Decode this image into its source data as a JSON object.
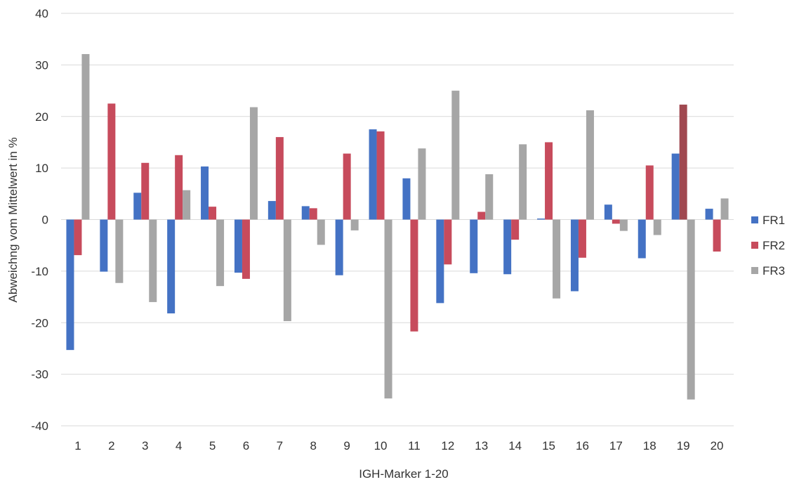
{
  "chart_data": {
    "type": "bar",
    "xlabel": "IGH-Marker 1-20",
    "ylabel": "Abweichng vom Mittelwert in %",
    "ylim": [
      -40,
      40
    ],
    "yticks": [
      -40,
      -30,
      -20,
      -10,
      0,
      10,
      20,
      30,
      40
    ],
    "grid": true,
    "legend_position": "right",
    "categories": [
      "1",
      "2",
      "3",
      "4",
      "5",
      "6",
      "7",
      "8",
      "9",
      "10",
      "11",
      "12",
      "13",
      "14",
      "15",
      "16",
      "17",
      "18",
      "19",
      "20"
    ],
    "series": [
      {
        "name": "FR1",
        "color": "#4472c4",
        "values": [
          -25.3,
          -10.1,
          5.2,
          -18.2,
          10.3,
          -10.3,
          3.6,
          2.6,
          -10.8,
          17.5,
          8.0,
          -16.2,
          -10.4,
          -10.6,
          0.2,
          -13.9,
          2.9,
          -7.5,
          12.8,
          2.1
        ]
      },
      {
        "name": "FR2",
        "color": "#c74b5c",
        "highlight_color": "#a04850",
        "highlight_index": 18,
        "values": [
          -6.9,
          22.5,
          11.0,
          12.5,
          2.5,
          -11.5,
          16.0,
          2.2,
          12.8,
          17.1,
          -21.7,
          -8.7,
          1.5,
          -3.9,
          15.0,
          -7.4,
          -0.8,
          10.5,
          22.3,
          -6.2
        ]
      },
      {
        "name": "FR3",
        "color": "#a6a6a6",
        "values": [
          32.1,
          -12.3,
          -16.0,
          5.7,
          -12.9,
          21.8,
          -19.7,
          -4.9,
          -2.1,
          -34.7,
          13.8,
          25.0,
          8.8,
          14.6,
          -15.3,
          21.2,
          -2.2,
          -3.0,
          -34.9,
          4.1
        ]
      }
    ]
  }
}
